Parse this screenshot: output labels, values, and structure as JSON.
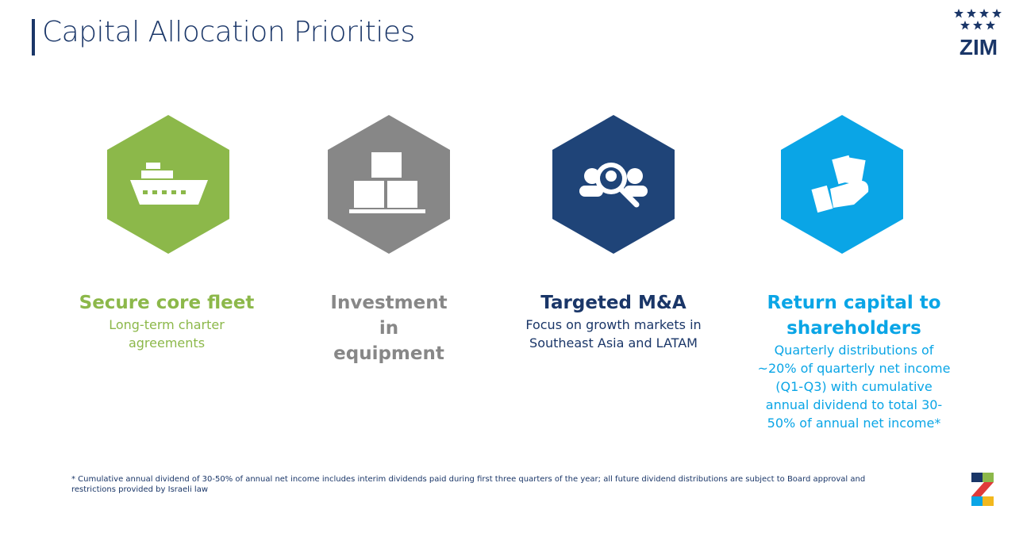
{
  "header": {
    "title": "Capital Allocation Priorities",
    "logo": "ZIM"
  },
  "items": [
    {
      "title": "Secure core fleet",
      "description": "Long-term charter agreements"
    },
    {
      "title": "Investment in equipment",
      "description": null
    },
    {
      "title": "Targeted M&A",
      "description": "Focus on growth markets in Southeast Asia and LATAM"
    },
    {
      "title": "Return capital to shareholders",
      "description": "Quarterly distributions of ~20% of quarterly net income (Q1-Q3) with cumulative annual dividend to total 30-50% of annual net income*"
    }
  ],
  "footnote": "* Cumulative annual dividend of 30-50% of annual net income includes interim dividends paid during first three quarters of the year; all future dividend distributions are subject to Board approval and restrictions provided by Israeli law"
}
